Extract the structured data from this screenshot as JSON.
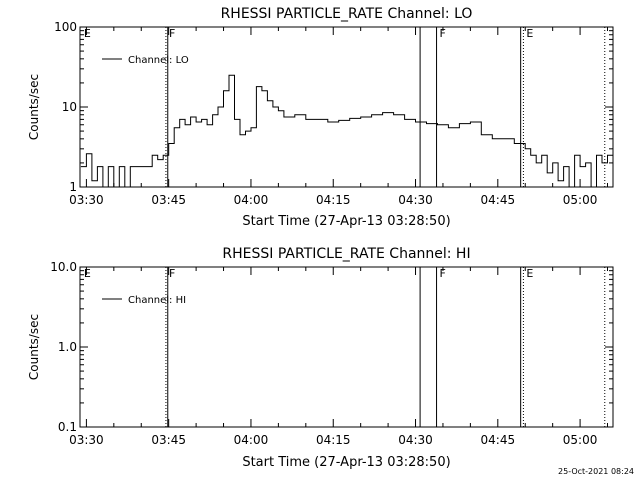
{
  "footer": {
    "timestamp": "25-Oct-2021 08:24"
  },
  "chart_data": [
    {
      "type": "line",
      "title": "RHESSI PARTICLE_RATE Channel: LO",
      "xlabel": "Start Time (27-Apr-13 03:28:50)",
      "ylabel": "Counts/sec",
      "yscale": "log",
      "ylim": [
        1,
        100
      ],
      "xlim": [
        "03:28:50",
        "05:06:00"
      ],
      "x_ticks": [
        "03:30",
        "03:45",
        "04:00",
        "04:15",
        "04:30",
        "04:45",
        "05:00"
      ],
      "y_ticks": [
        "1",
        "10",
        "100"
      ],
      "grid": false,
      "legend": {
        "position": "top-left"
      },
      "series": [
        {
          "name": "Channel: LO",
          "x": [
            "03:29",
            "03:30",
            "03:31",
            "03:32",
            "03:33",
            "03:34",
            "03:35",
            "03:36",
            "03:37",
            "03:38",
            "03:39",
            "03:40",
            "03:41",
            "03:42",
            "03:43",
            "03:44",
            "03:45",
            "03:46",
            "03:47",
            "03:48",
            "03:49",
            "03:50",
            "03:51",
            "03:52",
            "03:53",
            "03:54",
            "03:55",
            "03:56",
            "03:57",
            "03:58",
            "03:59",
            "04:00",
            "04:01",
            "04:02",
            "04:03",
            "04:04",
            "04:05",
            "04:06",
            "04:08",
            "04:10",
            "04:12",
            "04:14",
            "04:16",
            "04:18",
            "04:20",
            "04:22",
            "04:24",
            "04:26",
            "04:28",
            "04:30",
            "04:32",
            "04:34",
            "04:36",
            "04:38",
            "04:40",
            "04:42",
            "04:44",
            "04:46",
            "04:48",
            "04:50",
            "04:51",
            "04:52",
            "04:53",
            "04:54",
            "04:55",
            "04:56",
            "04:57",
            "04:58",
            "04:59",
            "05:00",
            "05:01",
            "05:02",
            "05:03",
            "05:04",
            "05:05"
          ],
          "values": [
            1.8,
            2.6,
            1.2,
            1.8,
            1.0,
            1.8,
            1.0,
            1.8,
            1.0,
            1.8,
            1.8,
            1.8,
            1.8,
            2.5,
            2.2,
            2.5,
            3.5,
            5.5,
            7.0,
            6.0,
            7.5,
            6.5,
            7.0,
            6.0,
            8.0,
            10.0,
            16.0,
            25.0,
            7.0,
            4.5,
            5.0,
            5.5,
            18.0,
            16.0,
            12.0,
            10.0,
            9.0,
            7.5,
            8.0,
            7.0,
            7.0,
            6.5,
            6.8,
            7.2,
            7.5,
            8.0,
            8.5,
            8.0,
            7.0,
            6.5,
            6.2,
            6.0,
            5.5,
            6.2,
            6.5,
            4.5,
            4.0,
            4.0,
            3.5,
            3.0,
            2.5,
            2.0,
            2.5,
            1.5,
            2.0,
            1.2,
            1.8,
            1.0,
            2.5,
            1.8,
            2.0,
            1.0,
            2.5,
            2.0,
            2.5
          ]
        }
      ],
      "annotations": [
        {
          "label": "E",
          "x": "03:29"
        },
        {
          "label": "F",
          "x": "03:44:30",
          "style": "dotted"
        },
        {
          "label": "",
          "x": "03:44:50",
          "style": "solid"
        },
        {
          "label": "",
          "x": "04:30:50",
          "style": "solid"
        },
        {
          "label": "F",
          "x": "04:33:50",
          "style": "solid"
        },
        {
          "label": "",
          "x": "04:49:10",
          "style": "solid"
        },
        {
          "label": "E",
          "x": "04:49:40",
          "style": "dotted"
        },
        {
          "label": "",
          "x": "05:04:30",
          "style": "dotted"
        }
      ]
    },
    {
      "type": "line",
      "title": "RHESSI PARTICLE_RATE Channel: HI",
      "xlabel": "Start Time (27-Apr-13 03:28:50)",
      "ylabel": "Counts/sec",
      "yscale": "log",
      "ylim": [
        0.1,
        10
      ],
      "xlim": [
        "03:28:50",
        "05:06:00"
      ],
      "x_ticks": [
        "03:30",
        "03:45",
        "04:00",
        "04:15",
        "04:30",
        "04:45",
        "05:00"
      ],
      "y_ticks": [
        "0.1",
        "1.0",
        "10.0"
      ],
      "grid": false,
      "legend": {
        "position": "top-left"
      },
      "series": [
        {
          "name": "Channel: HI",
          "x": [],
          "values": []
        }
      ],
      "annotations": [
        {
          "label": "E",
          "x": "03:29"
        },
        {
          "label": "F",
          "x": "03:44:30",
          "style": "dotted"
        },
        {
          "label": "",
          "x": "03:44:50",
          "style": "solid"
        },
        {
          "label": "",
          "x": "04:30:50",
          "style": "solid"
        },
        {
          "label": "F",
          "x": "04:33:50",
          "style": "solid"
        },
        {
          "label": "",
          "x": "04:49:10",
          "style": "solid"
        },
        {
          "label": "E",
          "x": "04:49:40",
          "style": "dotted"
        },
        {
          "label": "",
          "x": "05:04:30",
          "style": "dotted"
        }
      ]
    }
  ]
}
